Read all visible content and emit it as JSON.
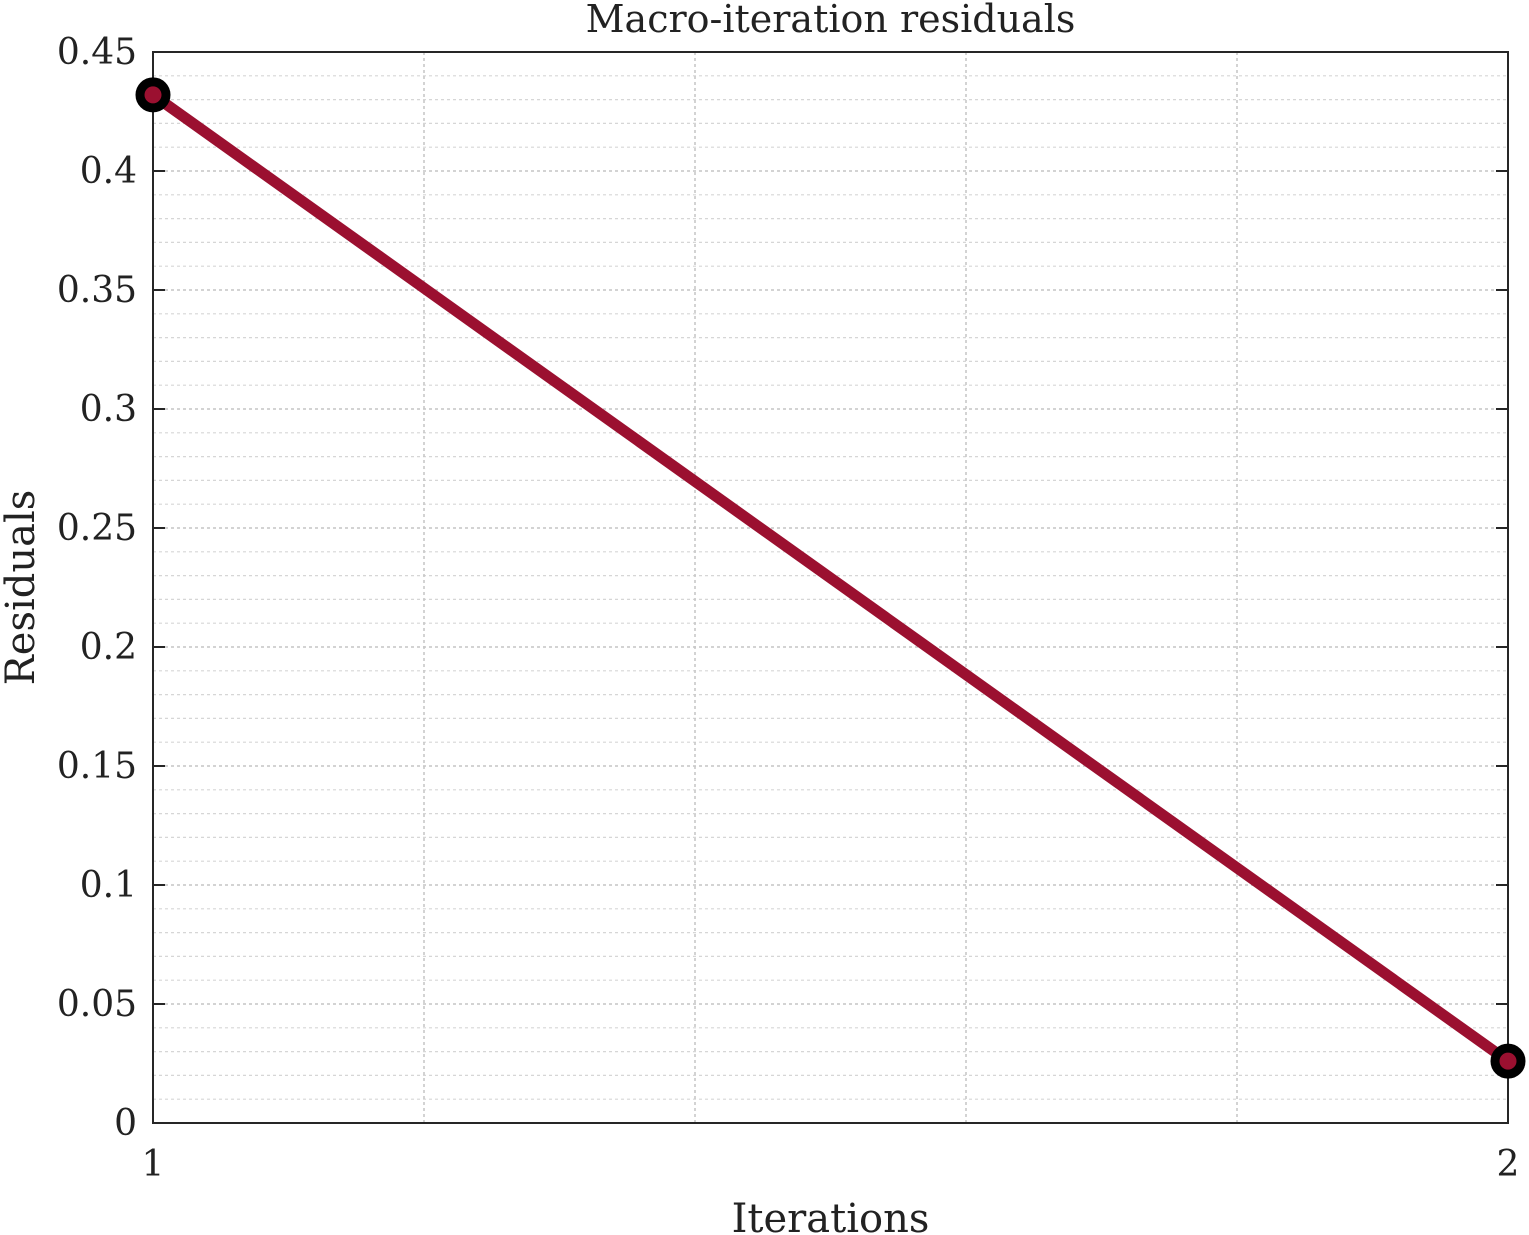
{
  "chart_data": {
    "type": "line",
    "title": "Macro-iteration residuals",
    "xlabel": "Iterations",
    "ylabel": "Residuals",
    "x": [
      1,
      2
    ],
    "series": [
      {
        "values": [
          0.432,
          0.026
        ],
        "color": "#9b1030",
        "marker_edge_color": "#000000"
      }
    ],
    "xlim": [
      1,
      2
    ],
    "ylim": [
      0,
      0.45
    ],
    "xticks": [
      1,
      2
    ],
    "xtick_labels": [
      "1",
      "2"
    ],
    "yticks": [
      0,
      0.05,
      0.1,
      0.15,
      0.2,
      0.25,
      0.3,
      0.35,
      0.4,
      0.45
    ],
    "ytick_labels": [
      "0",
      "0.05",
      "0.1",
      "0.15",
      "0.2",
      "0.25",
      "0.3",
      "0.35",
      "0.4",
      "0.45"
    ],
    "grid": true,
    "minor_grid_y": true,
    "x_grid_fractions": [
      0.2,
      0.4,
      0.6,
      0.8
    ],
    "y_minor_step": 0.01
  }
}
